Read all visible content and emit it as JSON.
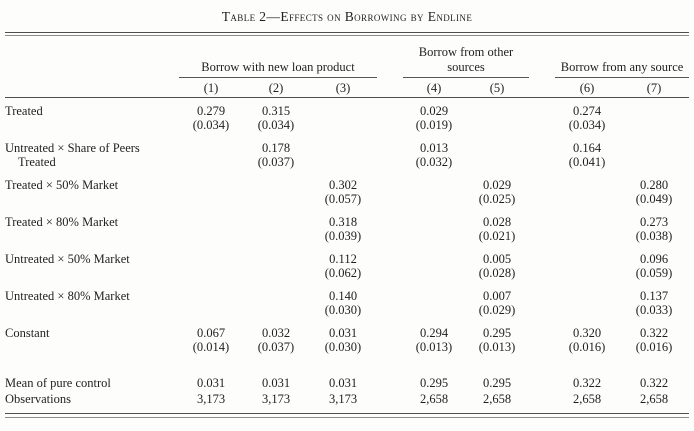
{
  "title": "Table 2—Effects on Borrowing by Endline",
  "colors": {
    "background": "#fdfdfc",
    "text": "#1f1f1f",
    "rule": "#4f4f4f"
  },
  "table": {
    "col_groups": [
      {
        "label": "Borrow with new loan product",
        "span": 3
      },
      {
        "label": "Borrow from other sources",
        "span": 2
      },
      {
        "label": "Borrow from any source",
        "span": 2
      }
    ],
    "col_numbers": [
      "(1)",
      "(2)",
      "(3)",
      "(4)",
      "(5)",
      "(6)",
      "(7)"
    ],
    "rows": [
      {
        "label": "Treated",
        "label2": "",
        "coef": [
          "0.279",
          "0.315",
          "",
          "0.029",
          "",
          "0.274",
          ""
        ],
        "se": [
          "(0.034)",
          "(0.034)",
          "",
          "(0.019)",
          "",
          "(0.034)",
          ""
        ]
      },
      {
        "label": "Untreated × Share of Peers",
        "label2": "Treated",
        "coef": [
          "",
          "0.178",
          "",
          "0.013",
          "",
          "0.164",
          ""
        ],
        "se": [
          "",
          "(0.037)",
          "",
          "(0.032)",
          "",
          "(0.041)",
          ""
        ]
      },
      {
        "label": "Treated × 50% Market",
        "label2": "",
        "coef": [
          "",
          "",
          "0.302",
          "",
          "0.029",
          "",
          "0.280"
        ],
        "se": [
          "",
          "",
          "(0.057)",
          "",
          "(0.025)",
          "",
          "(0.049)"
        ]
      },
      {
        "label": "Treated × 80% Market",
        "label2": "",
        "coef": [
          "",
          "",
          "0.318",
          "",
          "0.028",
          "",
          "0.273"
        ],
        "se": [
          "",
          "",
          "(0.039)",
          "",
          "(0.021)",
          "",
          "(0.038)"
        ]
      },
      {
        "label": "Untreated × 50% Market",
        "label2": "",
        "coef": [
          "",
          "",
          "0.112",
          "",
          "0.005",
          "",
          "0.096"
        ],
        "se": [
          "",
          "",
          "(0.062)",
          "",
          "(0.028)",
          "",
          "(0.059)"
        ]
      },
      {
        "label": "Untreated × 80% Market",
        "label2": "",
        "coef": [
          "",
          "",
          "0.140",
          "",
          "0.007",
          "",
          "0.137"
        ],
        "se": [
          "",
          "",
          "(0.030)",
          "",
          "(0.029)",
          "",
          "(0.033)"
        ]
      },
      {
        "label": "Constant",
        "label2": "",
        "coef": [
          "0.067",
          "0.032",
          "0.031",
          "0.294",
          "0.295",
          "0.320",
          "0.322"
        ],
        "se": [
          "(0.014)",
          "(0.037)",
          "(0.030)",
          "(0.013)",
          "(0.013)",
          "(0.016)",
          "(0.016)"
        ]
      }
    ],
    "summary_rows": [
      {
        "label": "Mean of pure control",
        "values": [
          "0.031",
          "0.031",
          "0.031",
          "0.295",
          "0.295",
          "0.322",
          "0.322"
        ]
      },
      {
        "label": "Observations",
        "values": [
          "3,173",
          "3,173",
          "3,173",
          "2,658",
          "2,658",
          "2,658",
          "2,658"
        ]
      }
    ]
  }
}
